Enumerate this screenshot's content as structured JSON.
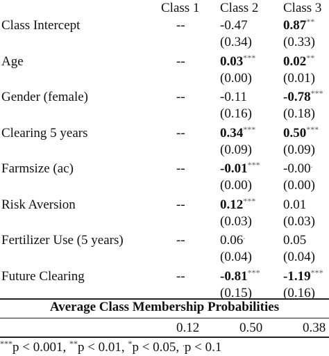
{
  "columns": [
    "Class 1",
    "Class 2",
    "Class 3"
  ],
  "rows": [
    {
      "label": "Class Intercept",
      "c1": "--",
      "c2": {
        "est": "-0.47",
        "bold": false,
        "sig": ""
      },
      "c2_se": "(0.34)",
      "c3": {
        "est": "0.87",
        "bold": true,
        "sig": "**"
      },
      "c3_se": "(0.33)"
    },
    {
      "label": "Age",
      "c1": "--",
      "c2": {
        "est": "0.03",
        "bold": true,
        "sig": "***"
      },
      "c2_se": "(0.00)",
      "c3": {
        "est": "0.02",
        "bold": true,
        "sig": "**"
      },
      "c3_se": "(0.01)"
    },
    {
      "label": "Gender (female)",
      "c1": "--",
      "c2": {
        "est": "-0.11",
        "bold": false,
        "sig": ""
      },
      "c2_se": "(0.16)",
      "c3": {
        "est": "-0.78",
        "bold": true,
        "sig": "***"
      },
      "c3_se": "(0.18)"
    },
    {
      "label": "Clearing 5 years",
      "c1": "--",
      "c2": {
        "est": "0.34",
        "bold": true,
        "sig": "***"
      },
      "c2_se": "(0.09)",
      "c3": {
        "est": "0.50",
        "bold": true,
        "sig": "***"
      },
      "c3_se": "(0.09)"
    },
    {
      "label": "Farmsize (ac)",
      "c1": "--",
      "c2": {
        "est": "-0.01",
        "bold": true,
        "sig": "***"
      },
      "c2_se": "(0.00)",
      "c3": {
        "est": "-0.00",
        "bold": false,
        "sig": "."
      },
      "c3_se": "(0.00)"
    },
    {
      "label": "Risk Aversion",
      "c1": "--",
      "c2": {
        "est": "0.12",
        "bold": true,
        "sig": "***"
      },
      "c2_se": "(0.03)",
      "c3": {
        "est": "0.01",
        "bold": false,
        "sig": ""
      },
      "c3_se": "(0.03)"
    },
    {
      "label": "Fertilizer Use (5 years)",
      "c1": "--",
      "c2": {
        "est": "0.06",
        "bold": false,
        "sig": "."
      },
      "c2_se": "(0.04)",
      "c3": {
        "est": "0.05",
        "bold": false,
        "sig": ""
      },
      "c3_se": "(0.04)"
    },
    {
      "label": "Future Clearing",
      "c1": "--",
      "c2": {
        "est": "-0.81",
        "bold": true,
        "sig": "***"
      },
      "c2_se": "(0.15)",
      "c3": {
        "est": "-1.19",
        "bold": true,
        "sig": "***"
      },
      "c3_se": "(0.16)"
    }
  ],
  "membership": {
    "title": "Average Class Membership Probabilities",
    "values": [
      "0.12",
      "0.50",
      "0.38"
    ]
  },
  "footnote": [
    {
      "sig": "***",
      "text": "p < 0.001, "
    },
    {
      "sig": "**",
      "text": "p < 0.01, "
    },
    {
      "sig": "*",
      "text": "p < 0.05, "
    },
    {
      "sig": ".",
      "text": "p < 0.1"
    }
  ]
}
